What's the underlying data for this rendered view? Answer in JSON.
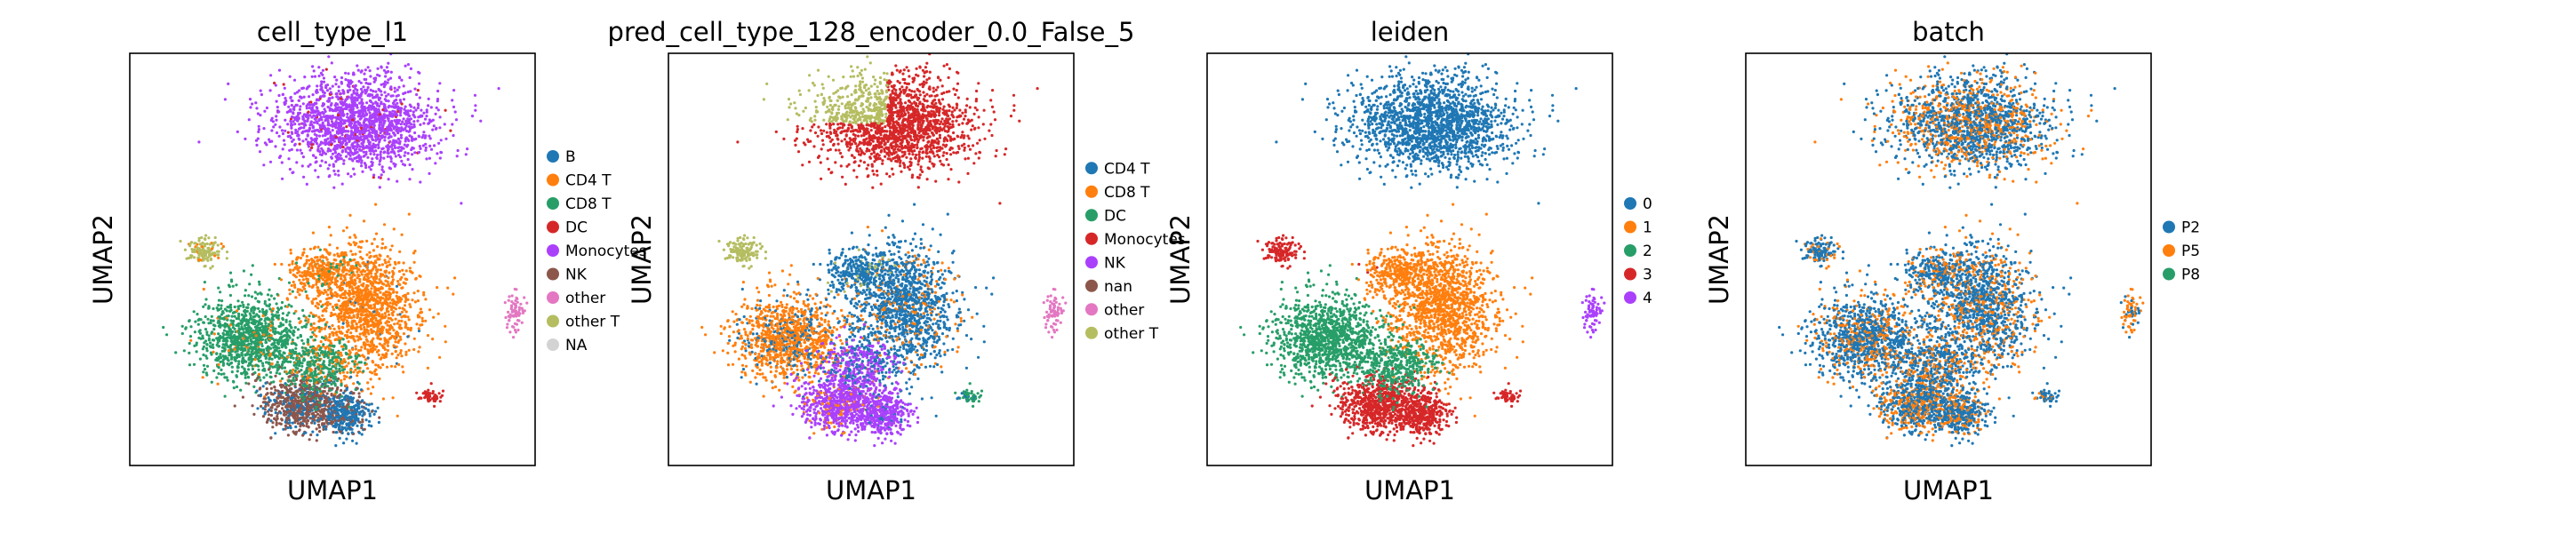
{
  "chart_data": [
    {
      "type": "scatter",
      "title": "cell_type_l1",
      "xlabel": "UMAP1",
      "ylabel": "UMAP2",
      "legend_position": "right",
      "grid": false,
      "legend": [
        {
          "label": "B",
          "color": "#1f77b4"
        },
        {
          "label": "CD4 T",
          "color": "#ff7f0e"
        },
        {
          "label": "CD8 T",
          "color": "#279e68"
        },
        {
          "label": "DC",
          "color": "#d62728"
        },
        {
          "label": "Monocytes",
          "color": "#aa40fc"
        },
        {
          "label": "NK",
          "color": "#8c564b"
        },
        {
          "label": "other",
          "color": "#e377c2"
        },
        {
          "label": "other T",
          "color": "#b5bd61"
        },
        {
          "label": "NA",
          "color": "#d3d3d3"
        }
      ]
    },
    {
      "type": "scatter",
      "title": "pred_cell_type_128_encoder_0.0_False_5",
      "xlabel": "UMAP1",
      "ylabel": "UMAP2",
      "legend_position": "right",
      "grid": false,
      "legend": [
        {
          "label": "CD4 T",
          "color": "#1f77b4"
        },
        {
          "label": "CD8 T",
          "color": "#ff7f0e"
        },
        {
          "label": "DC",
          "color": "#279e68"
        },
        {
          "label": "Monocytes",
          "color": "#d62728"
        },
        {
          "label": "NK",
          "color": "#aa40fc"
        },
        {
          "label": "nan",
          "color": "#8c564b"
        },
        {
          "label": "other",
          "color": "#e377c2"
        },
        {
          "label": "other T",
          "color": "#b5bd61"
        }
      ]
    },
    {
      "type": "scatter",
      "title": "leiden",
      "xlabel": "UMAP1",
      "ylabel": "UMAP2",
      "legend_position": "right",
      "grid": false,
      "legend": [
        {
          "label": "0",
          "color": "#1f77b4"
        },
        {
          "label": "1",
          "color": "#ff7f0e"
        },
        {
          "label": "2",
          "color": "#279e68"
        },
        {
          "label": "3",
          "color": "#d62728"
        },
        {
          "label": "4",
          "color": "#aa40fc"
        }
      ]
    },
    {
      "type": "scatter",
      "title": "batch",
      "xlabel": "UMAP1",
      "ylabel": "UMAP2",
      "legend_position": "right",
      "grid": false,
      "legend": [
        {
          "label": "P2",
          "color": "#1f77b4"
        },
        {
          "label": "P5",
          "color": "#ff7f0e"
        },
        {
          "label": "P8",
          "color": "#279e68"
        }
      ]
    }
  ]
}
